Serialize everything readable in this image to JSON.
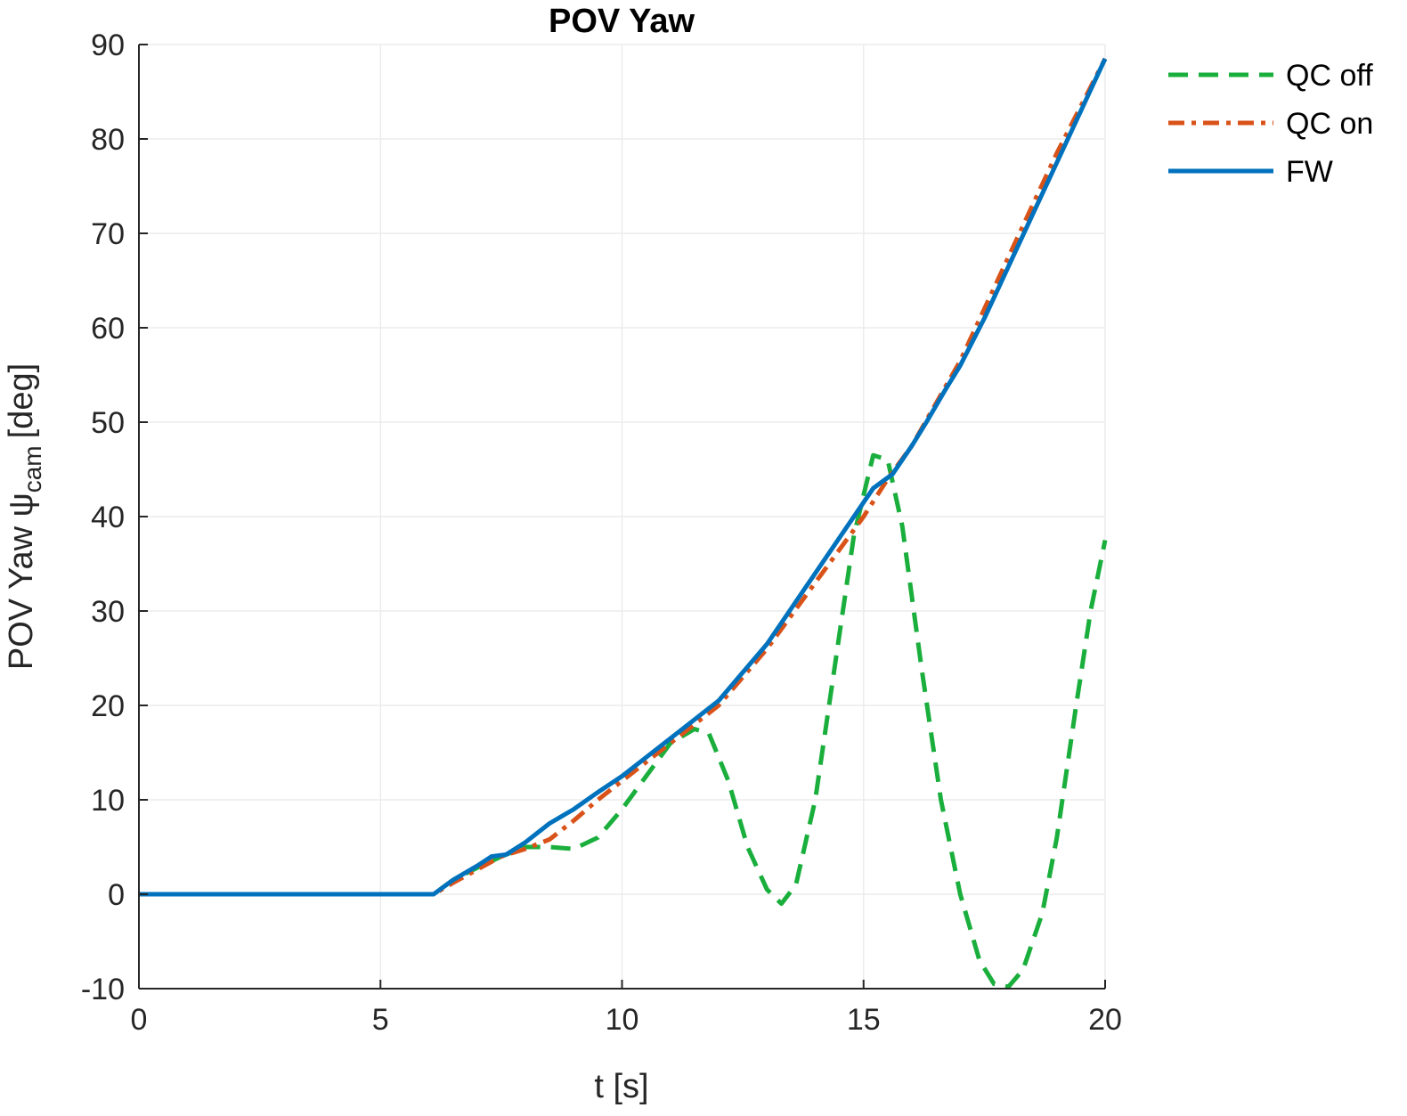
{
  "chart_data": {
    "type": "line",
    "title": "POV Yaw",
    "xlabel": "t [s]",
    "ylabel": "POV Yaw ψ",
    "ylabel_subscript": "cam",
    "ylabel_unit": "[deg]",
    "xlim": [
      0,
      20
    ],
    "ylim": [
      -10,
      90
    ],
    "xticks": [
      0,
      5,
      10,
      15,
      20
    ],
    "yticks": [
      -10,
      0,
      10,
      20,
      30,
      40,
      50,
      60,
      70,
      80,
      90
    ],
    "grid": true,
    "legend_position": "outside-top-right",
    "series": [
      {
        "name": "QC off",
        "color": "#1aaf3c",
        "style": "dashed",
        "x": [
          0,
          6.1,
          6.5,
          7.0,
          7.5,
          8.0,
          8.5,
          9.0,
          9.5,
          10.0,
          10.5,
          11.0,
          11.5,
          11.8,
          12.2,
          12.6,
          13.0,
          13.3,
          13.6,
          14.0,
          14.4,
          14.8,
          15.2,
          15.5,
          15.8,
          16.2,
          16.6,
          17.0,
          17.4,
          17.7,
          18.0,
          18.3,
          18.7,
          19.0,
          19.4,
          19.7,
          20.0
        ],
        "y": [
          0,
          0,
          1.5,
          2.8,
          4.0,
          5.0,
          5.0,
          4.8,
          6.0,
          9.0,
          12.5,
          16.0,
          17.5,
          17.0,
          12.0,
          5.0,
          0.5,
          -1.0,
          1.0,
          10.0,
          24.0,
          38.0,
          46.5,
          46.0,
          39.0,
          24.0,
          10.0,
          0.0,
          -7.0,
          -9.5,
          -9.8,
          -8.0,
          -2.0,
          6.0,
          20.0,
          30.0,
          37.5
        ]
      },
      {
        "name": "QC on",
        "color": "#d95319",
        "style": "dashdot",
        "x": [
          0,
          6.1,
          6.5,
          7.0,
          7.5,
          8.0,
          8.5,
          9.0,
          9.5,
          10.0,
          10.5,
          11.0,
          12.0,
          13.0,
          14.0,
          15.0,
          15.5,
          16.0,
          16.5,
          17.0,
          17.5,
          18.0,
          18.5,
          19.0,
          19.5,
          20.0
        ],
        "y": [
          0,
          0,
          1.2,
          2.6,
          4.0,
          4.8,
          5.8,
          7.8,
          10.0,
          12.0,
          14.0,
          16.0,
          20.0,
          26.0,
          33.0,
          40.0,
          44.0,
          47.5,
          52.0,
          56.5,
          62.0,
          67.5,
          73.0,
          78.5,
          83.5,
          88.5
        ]
      },
      {
        "name": "FW",
        "color": "#0072bd",
        "style": "solid",
        "x": [
          0,
          6.1,
          6.5,
          7.0,
          7.3,
          7.6,
          8.0,
          8.5,
          9.0,
          9.5,
          10.0,
          10.5,
          11.0,
          12.0,
          13.0,
          14.0,
          14.8,
          15.2,
          15.6,
          16.0,
          16.3,
          16.7,
          17.0,
          17.5,
          18.0,
          18.5,
          19.0,
          19.5,
          20.0
        ],
        "y": [
          0,
          0,
          1.5,
          3.0,
          4.0,
          4.2,
          5.5,
          7.5,
          9.0,
          10.8,
          12.5,
          14.5,
          16.5,
          20.5,
          26.5,
          34.0,
          40.0,
          43.0,
          44.5,
          47.5,
          50.0,
          53.5,
          56.0,
          61.0,
          66.5,
          72.0,
          77.5,
          83.0,
          88.5
        ]
      }
    ]
  }
}
